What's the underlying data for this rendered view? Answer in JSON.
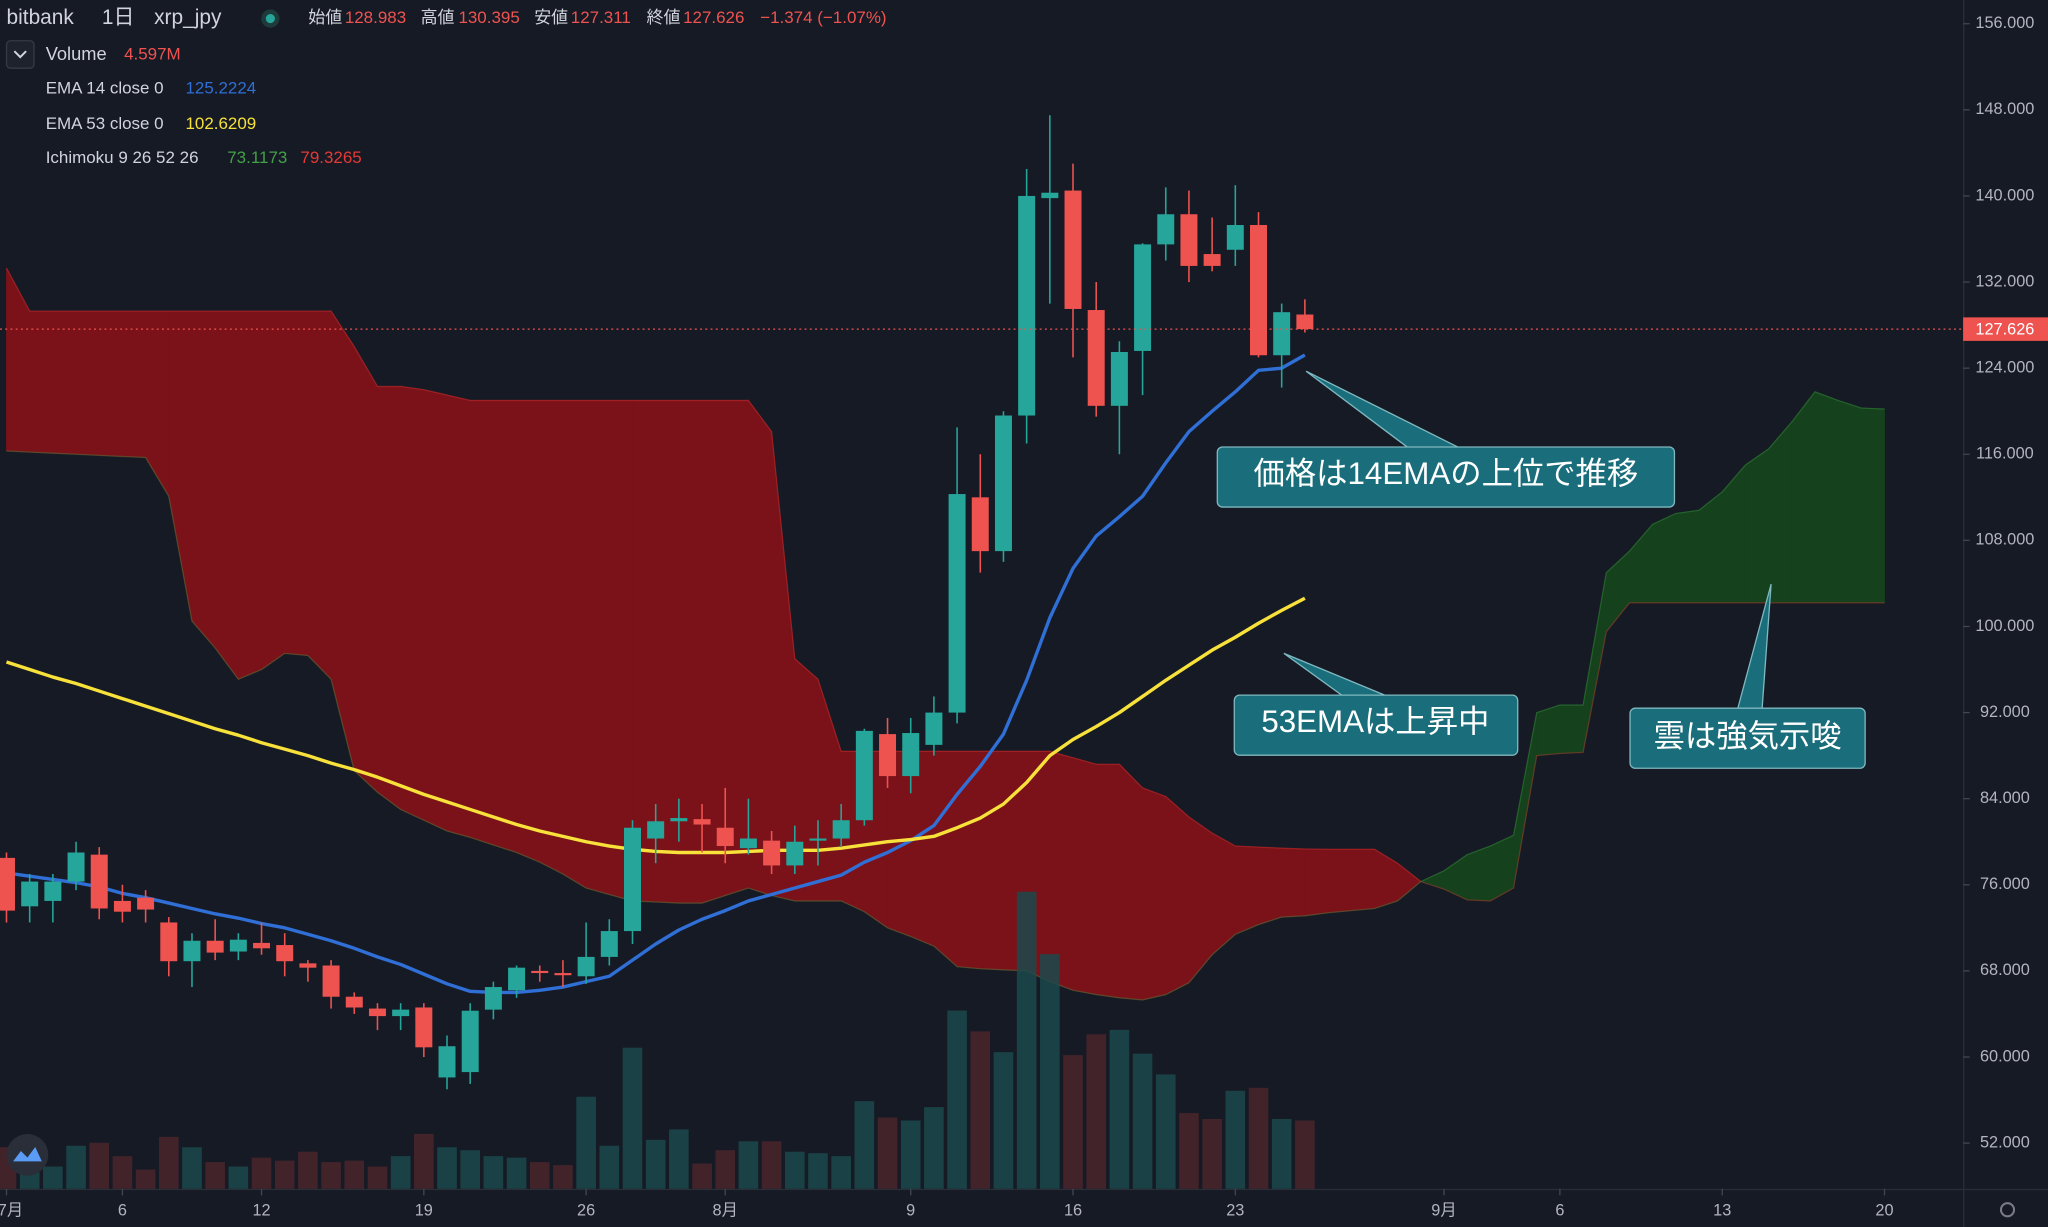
{
  "header": {
    "exchange": "bitbank",
    "interval": "1日",
    "symbol": "xrp_jpy",
    "open_label": "始値",
    "open": "128.983",
    "high_label": "高値",
    "high": "130.395",
    "low_label": "安値",
    "low": "127.311",
    "close_label": "終値",
    "close": "127.626",
    "change": "−1.374 (−1.07%)"
  },
  "chart_data": {
    "type": "candlestick",
    "x": [
      0,
      1,
      2,
      3,
      4,
      5,
      6,
      7,
      8,
      9,
      10,
      11,
      12,
      13,
      14,
      15,
      16,
      17,
      18,
      19,
      20,
      21,
      22,
      23,
      24,
      25,
      26,
      27,
      28,
      29,
      30,
      31,
      32,
      33,
      34,
      35,
      36,
      37,
      38,
      39,
      40,
      41,
      42,
      43,
      44,
      45,
      46,
      47,
      48,
      49,
      50,
      51,
      52,
      53,
      54,
      55,
      56
    ],
    "open": [
      78.5,
      74.0,
      74.5,
      76.3,
      78.8,
      74.5,
      74.8,
      72.5,
      68.9,
      70.8,
      69.8,
      70.6,
      70.4,
      68.7,
      68.5,
      65.6,
      64.5,
      63.8,
      64.6,
      58.1,
      58.6,
      64.4,
      66.2,
      68.0,
      67.8,
      67.5,
      69.3,
      71.7,
      80.3,
      81.9,
      82.1,
      81.3,
      79.4,
      80.1,
      77.8,
      80.1,
      80.3,
      82.0,
      90.0,
      86.1,
      89.0,
      92.0,
      112.0,
      107.0,
      119.6,
      139.8,
      140.5,
      129.4,
      120.5,
      125.6,
      135.5,
      138.3,
      134.6,
      135.0,
      137.3,
      125.2,
      128.983
    ],
    "high": [
      79,
      77,
      77,
      80,
      79.5,
      76,
      75.5,
      73,
      71.5,
      72.8,
      71.5,
      72.5,
      71.5,
      69,
      69,
      66,
      65,
      65,
      65,
      62,
      65,
      67,
      68.5,
      68.5,
      69,
      72.5,
      72.8,
      82,
      83.5,
      84,
      83.5,
      85,
      84,
      81,
      81.5,
      82,
      83.5,
      90.5,
      91.5,
      91.5,
      93.5,
      118.5,
      116,
      120,
      142.5,
      147.5,
      143,
      132,
      126.5,
      135.6,
      140.8,
      140.5,
      138,
      141,
      138.5,
      130,
      130.395
    ],
    "low": [
      72.5,
      72.5,
      72.5,
      75.5,
      72.8,
      72.5,
      72.5,
      67.5,
      66.5,
      69,
      69,
      69.5,
      67.5,
      67,
      64.5,
      64,
      62.5,
      62.5,
      60,
      57,
      57.5,
      63.5,
      65.5,
      67,
      66.5,
      66.8,
      68.5,
      70.5,
      78,
      80,
      79,
      78,
      78.8,
      77,
      77,
      77.8,
      79.5,
      81.5,
      85,
      84.5,
      88,
      91,
      105,
      106,
      117,
      130,
      125,
      119.5,
      116,
      121.5,
      134,
      132,
      133,
      133.5,
      125,
      122.2,
      127.311
    ],
    "close": [
      73.6,
      76.3,
      76.3,
      79.0,
      73.8,
      73.5,
      73.7,
      68.9,
      70.8,
      69.7,
      70.9,
      70.1,
      68.9,
      68.3,
      65.6,
      64.6,
      63.8,
      64.4,
      60.9,
      61.0,
      64.3,
      66.5,
      68.3,
      67.8,
      67.6,
      69.3,
      71.7,
      81.3,
      81.9,
      82.2,
      81.6,
      79.6,
      80.3,
      77.8,
      80.0,
      80.3,
      82.0,
      90.3,
      86.1,
      90.1,
      92.0,
      112.3,
      107.0,
      119.6,
      140.0,
      140.3,
      129.5,
      120.5,
      125.5,
      135.5,
      138.3,
      133.5,
      133.5,
      137.3,
      125.2,
      129.2,
      127.626
    ],
    "up_color": "#26a69a",
    "down_color": "#ef5350",
    "volume": {
      "name": "Volume",
      "axis": "y2",
      "value_label": "4.597M",
      "up_color": "#1b4a4c",
      "down_color": "#4a262c",
      "values": [
        2.8,
        2.2,
        1.5,
        2.9,
        3.1,
        2.2,
        1.3,
        3.5,
        2.8,
        1.8,
        1.5,
        2.1,
        1.9,
        2.5,
        1.8,
        1.9,
        1.5,
        2.2,
        3.7,
        2.8,
        2.6,
        2.2,
        2.1,
        1.8,
        1.6,
        6.2,
        2.9,
        9.5,
        3.3,
        4.0,
        1.7,
        2.6,
        3.2,
        3.2,
        2.5,
        2.4,
        2.2,
        5.9,
        4.8,
        4.6,
        5.5,
        12.0,
        10.6,
        9.2,
        20.0,
        15.8,
        9.0,
        10.4,
        10.7,
        9.1,
        7.7,
        5.1,
        4.7,
        6.6,
        6.8,
        4.7,
        4.597
      ]
    },
    "series": [
      {
        "name": "EMA 14 close 0",
        "color": "#2f6fd6",
        "value_label": "125.2224",
        "values": [
          77.1,
          76.8,
          76.5,
          76.2,
          75.8,
          75.2,
          74.8,
          74.3,
          73.8,
          73.3,
          72.9,
          72.4,
          72.0,
          71.4,
          70.8,
          70.1,
          69.3,
          68.6,
          67.7,
          66.8,
          66.1,
          66.0,
          66.0,
          66.2,
          66.5,
          67.0,
          67.5,
          69.0,
          70.5,
          71.8,
          72.8,
          73.6,
          74.5,
          75.1,
          75.7,
          76.3,
          76.9,
          78.1,
          79.0,
          80.1,
          81.5,
          84.4,
          87.0,
          90.0,
          95.0,
          100.8,
          105.4,
          108.4,
          110.2,
          112.1,
          115.2,
          118.1,
          120.0,
          121.8,
          123.8,
          124.0,
          125.2224
        ]
      },
      {
        "name": "EMA 53 close 0",
        "color": "#f7e13a",
        "value_label": "102.6209",
        "values": [
          96.7,
          96.0,
          95.3,
          94.7,
          94.0,
          93.3,
          92.6,
          91.9,
          91.2,
          90.5,
          89.9,
          89.2,
          88.6,
          88.0,
          87.3,
          86.7,
          86.0,
          85.2,
          84.4,
          83.7,
          83.0,
          82.3,
          81.6,
          81.0,
          80.5,
          80.0,
          79.6,
          79.3,
          79.1,
          79.0,
          79.0,
          79.0,
          79.1,
          79.2,
          79.2,
          79.2,
          79.4,
          79.7,
          80.0,
          80.2,
          80.5,
          81.3,
          82.2,
          83.5,
          85.5,
          88.0,
          89.5,
          90.7,
          92.0,
          93.5,
          95.0,
          96.4,
          97.8,
          99.0,
          100.3,
          101.5,
          102.6209
        ]
      }
    ],
    "ichimoku": {
      "name": "Ichimoku 9 26 52 26",
      "bull_color": "#15421d",
      "bear_color": "#7b121a",
      "x": [
        0,
        1,
        2,
        3,
        4,
        5,
        6,
        7,
        8,
        9,
        10,
        11,
        12,
        13,
        14,
        15,
        16,
        17,
        18,
        19,
        20,
        21,
        22,
        23,
        24,
        25,
        26,
        27,
        28,
        29,
        30,
        31,
        32,
        33,
        34,
        35,
        36,
        37,
        38,
        39,
        40,
        41,
        42,
        43,
        44,
        45,
        46,
        47,
        48,
        49,
        50,
        51,
        52,
        53,
        54,
        55,
        56,
        57,
        58,
        59,
        60,
        61,
        62,
        63,
        64,
        65,
        66,
        67,
        68,
        69,
        70,
        71,
        72,
        73,
        74,
        75,
        76,
        77,
        78,
        79,
        80,
        81
      ],
      "lead1": {
        "color": "#43a047",
        "value_label": "73.1173",
        "values": [
          116.3,
          116.2,
          116.1,
          116.0,
          115.9,
          115.8,
          115.7,
          112.1,
          100.5,
          98.0,
          95.1,
          96.0,
          97.5,
          97.3,
          95.1,
          86.6,
          84.6,
          83.0,
          82.0,
          81.0,
          80.4,
          79.7,
          79.0,
          78.1,
          77.0,
          75.7,
          75.1,
          74.5,
          74.4,
          74.3,
          74.3,
          75.0,
          75.7,
          75.0,
          74.5,
          74.5,
          74.5,
          73.5,
          72.0,
          71.2,
          70.3,
          68.4,
          68.2,
          68.1,
          68.0,
          67.0,
          66.2,
          65.8,
          65.5,
          65.3,
          65.8,
          66.9,
          69.5,
          71.4,
          72.3,
          73.0,
          73.1173,
          73.4,
          73.6,
          73.8,
          74.5,
          76.3,
          77.3,
          78.8,
          79.6,
          80.6,
          92.0,
          92.7,
          92.7,
          105.0,
          107.0,
          109.5,
          110.5,
          110.8,
          112.5,
          115.0,
          116.5,
          119.0,
          121.8,
          121.0,
          120.3,
          120.2
        ]
      },
      "lead2": {
        "color": "#e53935",
        "value_label": "79.3265",
        "values": [
          133.3,
          129.3,
          129.3,
          129.3,
          129.3,
          129.3,
          129.3,
          129.3,
          129.3,
          129.3,
          129.3,
          129.3,
          129.3,
          129.3,
          129.3,
          126.0,
          122.3,
          122.3,
          122.0,
          121.5,
          121.0,
          121.0,
          121.0,
          121.0,
          121.0,
          121.0,
          121.0,
          121.0,
          121.0,
          121.0,
          121.0,
          121.0,
          121.0,
          118.1,
          97.0,
          95.1,
          88.4,
          88.4,
          88.4,
          88.4,
          88.4,
          88.4,
          88.4,
          88.4,
          88.4,
          88.4,
          87.8,
          87.2,
          87.2,
          85.0,
          84.2,
          82.3,
          80.8,
          79.6,
          79.5,
          79.4,
          79.3265,
          79.3,
          79.3,
          79.3,
          78.0,
          76.3,
          75.6,
          74.6,
          74.5,
          75.7,
          88.0,
          88.2,
          88.3,
          99.5,
          102.2,
          102.2,
          102.2,
          102.2,
          102.2,
          102.2,
          102.2,
          102.2,
          102.2,
          102.2,
          102.2,
          102.2
        ]
      }
    },
    "last_price": {
      "value": 127.626,
      "label": "127.626",
      "color": "#ef5350"
    },
    "xlim": [
      -0.28,
      84.39
    ],
    "xticks": [
      {
        "value": 0,
        "label": "7月"
      },
      {
        "value": 5,
        "label": "6"
      },
      {
        "value": 11,
        "label": "12"
      },
      {
        "value": 18,
        "label": "19"
      },
      {
        "value": 25,
        "label": "26"
      },
      {
        "value": 31,
        "label": "8月"
      },
      {
        "value": 39,
        "label": "9"
      },
      {
        "value": 46,
        "label": "16"
      },
      {
        "value": 53,
        "label": "23"
      },
      {
        "value": 62,
        "label": "9月"
      },
      {
        "value": 67,
        "label": "6"
      },
      {
        "value": 74,
        "label": "13"
      },
      {
        "value": 81,
        "label": "20"
      }
    ],
    "ylim": [
      47.75,
      158.18
    ],
    "yticks": [
      {
        "value": 52,
        "label": "52.000"
      },
      {
        "value": 60,
        "label": "60.000"
      },
      {
        "value": 68,
        "label": "68.000"
      },
      {
        "value": 76,
        "label": "76.000"
      },
      {
        "value": 84,
        "label": "84.000"
      },
      {
        "value": 92,
        "label": "92.000"
      },
      {
        "value": 100,
        "label": "100.000"
      },
      {
        "value": 108,
        "label": "108.000"
      },
      {
        "value": 116,
        "label": "116.000"
      },
      {
        "value": 124,
        "label": "124.000"
      },
      {
        "value": 132,
        "label": "132.000"
      },
      {
        "value": 140,
        "label": "140.000"
      },
      {
        "value": 148,
        "label": "148.000"
      },
      {
        "value": 156,
        "label": "156.000"
      }
    ],
    "y2lim": [
      0,
      80
    ],
    "grid": false,
    "annotations": [
      "価格は14EMAの上位で推移",
      "53EMAは上昇中",
      "雲は強気示唆"
    ]
  }
}
